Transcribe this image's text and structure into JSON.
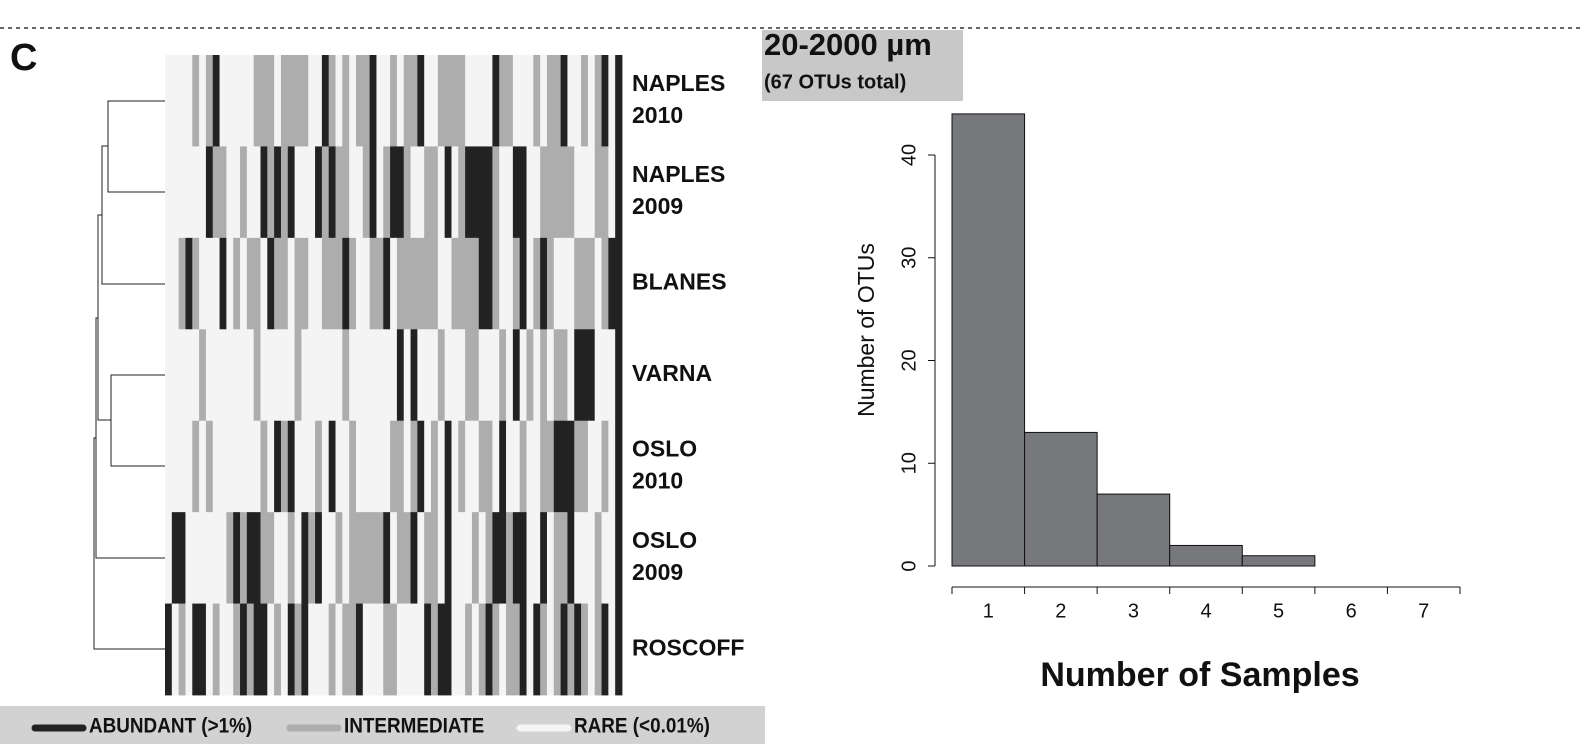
{
  "panel_label": "C",
  "chart_data": [
    {
      "type": "heatmap",
      "rows": [
        [
          "NAPLES",
          "2010"
        ],
        [
          "NAPLES",
          "2009"
        ],
        [
          "BLANES"
        ],
        [
          "VARNA"
        ],
        [
          "OSLO",
          "2010"
        ],
        [
          "OSLO",
          "2009"
        ],
        [
          "ROSCOFF"
        ]
      ],
      "legend": [
        {
          "name": "RARE (<0.01%)",
          "color": "#f4f4f4"
        },
        {
          "name": "INTERMEDIATE",
          "color": "#adadad"
        },
        {
          "name": "ABUNDANT (>1%)",
          "color": "#222222"
        }
      ],
      "values": [
        [
          0,
          0,
          0,
          0,
          1,
          0,
          1,
          2,
          0,
          0,
          0,
          0,
          0,
          1,
          1,
          1,
          0,
          1,
          1,
          1,
          1,
          0,
          0,
          2,
          1,
          0,
          1,
          0,
          1,
          1,
          2,
          0,
          0,
          1,
          0,
          1,
          1,
          2,
          0,
          0,
          1,
          1,
          1,
          1,
          0,
          0,
          0,
          0,
          2,
          1,
          1,
          0,
          0,
          0,
          1,
          0,
          1,
          1,
          2,
          0,
          0,
          1,
          0,
          1,
          2,
          0,
          2
        ],
        [
          0,
          0,
          0,
          0,
          0,
          0,
          2,
          1,
          1,
          0,
          0,
          1,
          0,
          0,
          2,
          1,
          2,
          1,
          2,
          0,
          0,
          0,
          2,
          1,
          2,
          1,
          1,
          0,
          0,
          1,
          2,
          0,
          1,
          2,
          2,
          1,
          0,
          0,
          1,
          1,
          0,
          2,
          0,
          1,
          2,
          2,
          2,
          2,
          1,
          0,
          0,
          2,
          2,
          0,
          0,
          1,
          1,
          1,
          1,
          1,
          0,
          0,
          0,
          1,
          1,
          0,
          2
        ],
        [
          0,
          0,
          1,
          2,
          1,
          0,
          0,
          0,
          2,
          0,
          1,
          0,
          1,
          1,
          0,
          2,
          1,
          1,
          0,
          1,
          1,
          0,
          0,
          1,
          1,
          1,
          2,
          1,
          0,
          0,
          1,
          1,
          2,
          0,
          1,
          1,
          1,
          1,
          1,
          1,
          0,
          0,
          1,
          1,
          1,
          1,
          2,
          2,
          1,
          0,
          0,
          1,
          2,
          0,
          1,
          2,
          1,
          0,
          0,
          0,
          1,
          1,
          1,
          0,
          1,
          2,
          2
        ],
        [
          0,
          0,
          0,
          0,
          0,
          1,
          0,
          0,
          0,
          0,
          0,
          0,
          0,
          1,
          0,
          0,
          0,
          0,
          0,
          1,
          0,
          0,
          0,
          0,
          0,
          0,
          1,
          0,
          0,
          0,
          0,
          0,
          0,
          0,
          2,
          0,
          2,
          0,
          0,
          0,
          1,
          0,
          0,
          0,
          1,
          1,
          0,
          0,
          0,
          1,
          0,
          2,
          0,
          1,
          0,
          1,
          0,
          1,
          1,
          0,
          2,
          2,
          2,
          0,
          0,
          0,
          2
        ],
        [
          0,
          0,
          0,
          0,
          1,
          0,
          1,
          0,
          0,
          0,
          0,
          0,
          0,
          0,
          1,
          0,
          2,
          1,
          2,
          0,
          0,
          0,
          1,
          0,
          2,
          0,
          0,
          1,
          0,
          0,
          0,
          0,
          0,
          1,
          1,
          0,
          1,
          2,
          0,
          1,
          0,
          2,
          0,
          1,
          0,
          0,
          1,
          1,
          0,
          2,
          0,
          0,
          1,
          0,
          0,
          1,
          1,
          2,
          2,
          2,
          1,
          1,
          0,
          0,
          1,
          0,
          2
        ],
        [
          0,
          2,
          2,
          0,
          0,
          0,
          0,
          0,
          0,
          1,
          2,
          1,
          2,
          2,
          1,
          1,
          0,
          0,
          1,
          0,
          2,
          1,
          2,
          0,
          0,
          1,
          0,
          1,
          1,
          1,
          1,
          1,
          2,
          0,
          1,
          1,
          2,
          0,
          1,
          1,
          0,
          2,
          0,
          0,
          0,
          1,
          0,
          1,
          2,
          2,
          1,
          2,
          2,
          0,
          0,
          2,
          0,
          1,
          1,
          2,
          0,
          0,
          0,
          1,
          0,
          0,
          2
        ],
        [
          2,
          0,
          1,
          0,
          2,
          2,
          0,
          1,
          0,
          0,
          1,
          2,
          1,
          2,
          2,
          0,
          1,
          0,
          2,
          1,
          2,
          0,
          0,
          0,
          1,
          0,
          1,
          1,
          2,
          0,
          0,
          0,
          1,
          1,
          0,
          0,
          0,
          0,
          2,
          1,
          2,
          2,
          0,
          0,
          1,
          0,
          1,
          2,
          1,
          0,
          1,
          1,
          2,
          0,
          2,
          1,
          0,
          1,
          2,
          1,
          2,
          1,
          0,
          1,
          2,
          0,
          2
        ]
      ]
    },
    {
      "type": "bar",
      "title": "20-2000 µm",
      "subtitle": "(67 OTUs total)",
      "x_label": "Number of Samples",
      "y_label": "Number of OTUs",
      "categories": [
        "1",
        "2",
        "3",
        "4",
        "5",
        "6",
        "7"
      ],
      "values": [
        44,
        13,
        7,
        2,
        1,
        0,
        0
      ],
      "color": "#77787c",
      "ylim": [
        0,
        45
      ],
      "yticks": [
        0,
        10,
        20,
        30,
        40
      ]
    }
  ]
}
